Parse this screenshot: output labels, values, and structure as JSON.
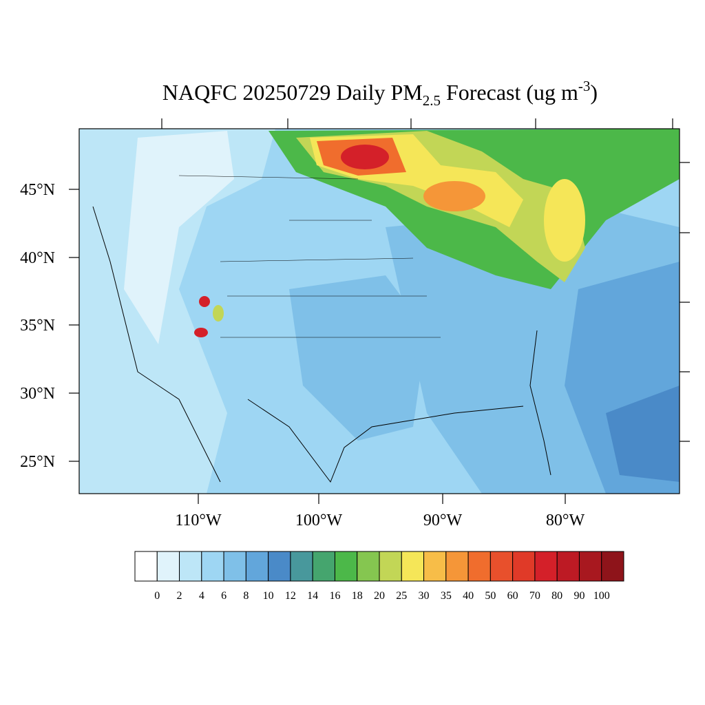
{
  "title": {
    "main": "NAQFC 20250729 Daily PM",
    "subscript": "2.5",
    "middle": " Forecast (ug m",
    "superscript": "-3",
    "end": ")"
  },
  "latitude_labels": [
    "45°N",
    "40°N",
    "35°N",
    "30°N",
    "25°N"
  ],
  "longitude_labels": [
    "110°W",
    "100°W",
    "90°W",
    "80°W"
  ],
  "colorbar": {
    "levels": [
      0,
      2,
      4,
      6,
      8,
      10,
      12,
      14,
      16,
      18,
      20,
      25,
      30,
      35,
      40,
      50,
      60,
      70,
      80,
      90,
      100
    ],
    "colors": [
      "#ffffff",
      "#e0f3fb",
      "#bde6f7",
      "#9ed6f3",
      "#7fc0e8",
      "#62a6db",
      "#4a8ac8",
      "#48989c",
      "#45a56e",
      "#4cb849",
      "#85c650",
      "#c2d656",
      "#f5e658",
      "#f7bd48",
      "#f59638",
      "#f06d2d",
      "#e8502c",
      "#e03a28",
      "#d42029",
      "#bd1a24",
      "#a8181f",
      "#8e141a"
    ]
  }
}
